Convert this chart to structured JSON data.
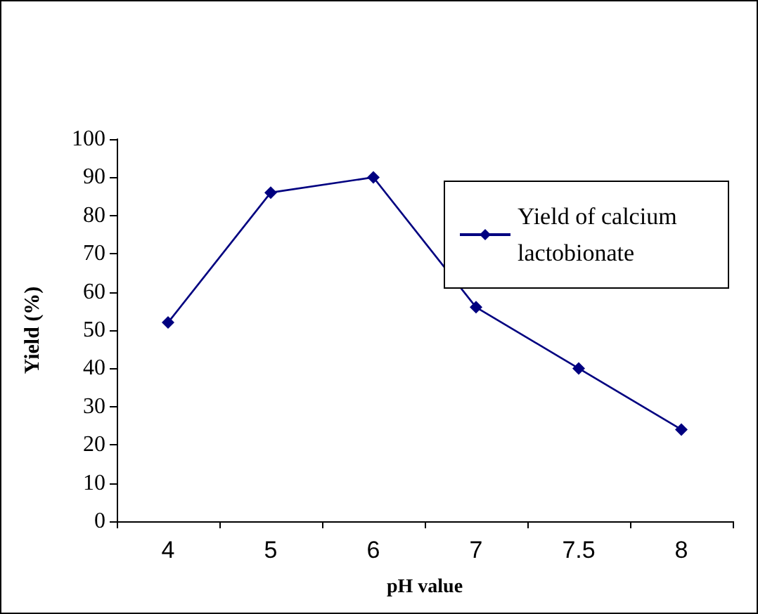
{
  "chart_data": {
    "type": "line",
    "xlabel": "pH value",
    "ylabel": "Yield (%)",
    "categories": [
      "4",
      "5",
      "6",
      "7",
      "7.5",
      "8"
    ],
    "series": [
      {
        "name": "Yield of calcium lactobionate",
        "color": "#000080",
        "values": [
          52,
          86,
          90,
          56,
          40,
          24
        ]
      }
    ],
    "ylim": [
      0,
      100
    ],
    "yticks": [
      0,
      10,
      20,
      30,
      40,
      50,
      60,
      70,
      80,
      90,
      100
    ],
    "grid": false,
    "legend": "top right",
    "marker": "diamond",
    "line_style": "solid"
  }
}
